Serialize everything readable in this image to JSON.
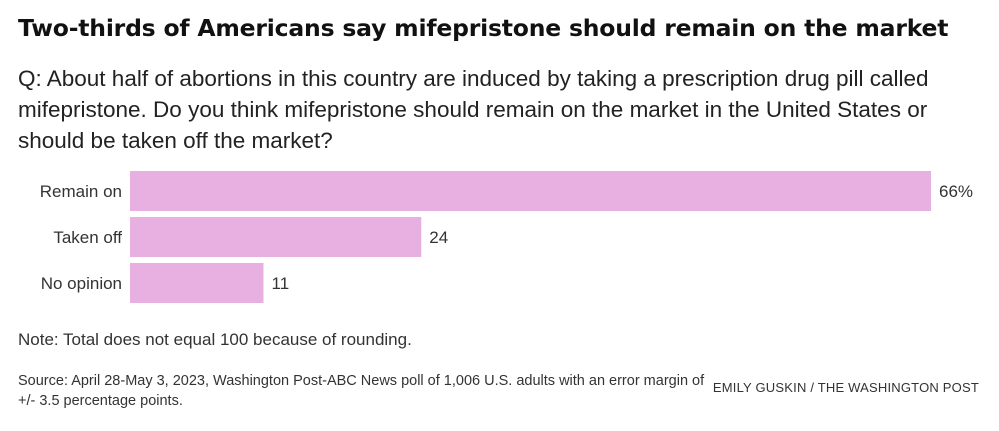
{
  "title": "Two-thirds of Americans say mifepristone should remain on the market",
  "question": "Q: About half of abortions in this country are induced by taking a prescription drug pill called mifepristone. Do you think mifepristone should remain on the market in the United States or should be taken off the market?",
  "note": "Note: Total does not equal 100 because of rounding.",
  "source": "Source: April 28-May 3, 2023, Washington Post-ABC News poll of 1,006 U.S. adults with an error margin of +/- 3.5 percentage points.",
  "credit": "EMILY GUSKIN / THE WASHINGTON POST",
  "colors": {
    "bar": "#e8b0e0"
  },
  "chart_data": {
    "type": "bar",
    "orientation": "horizontal",
    "categories": [
      "Remain on",
      "Taken off",
      "No opinion"
    ],
    "values": [
      66,
      24,
      11
    ],
    "value_labels": [
      "66%",
      "24",
      "11"
    ],
    "unit": "%",
    "xlim": [
      0,
      66
    ],
    "grid": false,
    "legend": "none"
  }
}
